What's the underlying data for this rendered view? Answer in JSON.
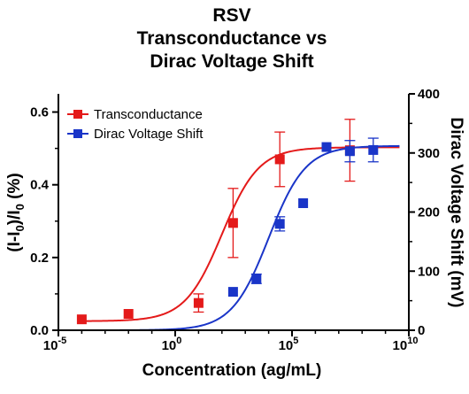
{
  "chart_data": {
    "type": "scatter",
    "title_lines": [
      "RSV",
      "Transconductance vs",
      "Dirac Voltage Shift"
    ],
    "xlabel": "Concentration (ag/mL)",
    "ylabel_left": {
      "base": "(I-I",
      "sub1": "0",
      "mid": ")/I",
      "sub2": "0",
      "end": " (%)"
    },
    "ylabel_right": "Dirac Voltage Shift (mV)",
    "x_scale": "log",
    "x_ticks": [
      {
        "base": "10",
        "exp": "-5",
        "value": 1e-05
      },
      {
        "base": "10",
        "exp": "0",
        "value": 1
      },
      {
        "base": "10",
        "exp": "5",
        "value": 100000.0
      },
      {
        "base": "10",
        "exp": "10",
        "value": 10000000000.0
      }
    ],
    "xlim": [
      1e-05,
      10000000000.0
    ],
    "y_left_ticks": [
      "0.0",
      "0.2",
      "0.4",
      "0.6"
    ],
    "y_left_lim": [
      0,
      0.65
    ],
    "y_right_ticks": [
      "0",
      "100",
      "200",
      "300",
      "400"
    ],
    "y_right_lim": [
      0,
      400
    ],
    "legend_position": "top-left",
    "series": [
      {
        "name": "Transconductance",
        "axis": "left",
        "color": "#e41a1a",
        "points": [
          {
            "x": 0.0001,
            "y": 0.03,
            "err": 0
          },
          {
            "x": 0.01,
            "y": 0.045,
            "err": 0
          },
          {
            "x": 10,
            "y": 0.075,
            "err": 0.025
          },
          {
            "x": 300,
            "y": 0.295,
            "err": 0.095
          },
          {
            "x": 30000,
            "y": 0.47,
            "err": 0.075
          },
          {
            "x": 30000000,
            "y": 0.495,
            "err": 0.085
          }
        ],
        "fit": {
          "bottom": 0.025,
          "top": 0.503,
          "log_ec50": 2.0,
          "hill": 0.55
        }
      },
      {
        "name": "Dirac Voltage Shift",
        "axis": "right",
        "color": "#1a35c8",
        "points": [
          {
            "x": 300,
            "y": 65,
            "err": 0
          },
          {
            "x": 3000,
            "y": 87,
            "err": 8
          },
          {
            "x": 30000,
            "y": 180,
            "err": 12
          },
          {
            "x": 300000,
            "y": 215,
            "err": 0
          },
          {
            "x": 3000000,
            "y": 310,
            "err": 0
          },
          {
            "x": 30000000,
            "y": 303,
            "err": 18
          },
          {
            "x": 300000000,
            "y": 305,
            "err": 20
          }
        ],
        "fit": {
          "bottom": 0,
          "top": 312,
          "log_ec50": 4.0,
          "hill": 0.55
        }
      }
    ]
  }
}
